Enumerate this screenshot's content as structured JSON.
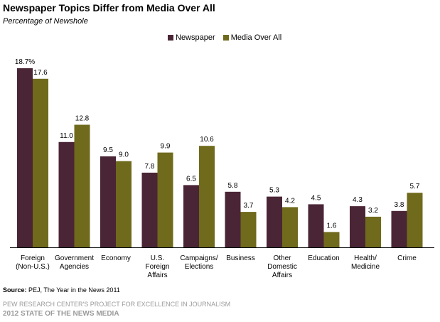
{
  "header": {
    "title": "Newspaper Topics Differ from Media Over All",
    "subtitle": "Percentage of Newshole"
  },
  "source": {
    "label": "Source:",
    "text": "PEJ, The Year in the News 2011"
  },
  "footer": {
    "org": "PEW RESEARCH CENTER'S PROJECT FOR EXCELLENCE IN JOURNALISM",
    "report": "2012 STATE OF THE NEWS MEDIA"
  },
  "colors": {
    "newspaper": "#4a2535",
    "media": "#6f6a1c"
  },
  "chart_data": {
    "type": "bar",
    "title": "Newspaper Topics Differ from Media Over All",
    "subtitle": "Percentage of Newshole",
    "legend_position": "top-center",
    "grid": false,
    "ylim": [
      0,
      18.7
    ],
    "categories": [
      [
        "Foreign",
        "(Non-U.S.)"
      ],
      [
        "Government",
        "Agencies"
      ],
      [
        "Economy"
      ],
      [
        "U.S.",
        "Foreign",
        "Affairs"
      ],
      [
        "Campaigns/",
        "Elections"
      ],
      [
        "Business"
      ],
      [
        "Other",
        "Domestic",
        "Affairs"
      ],
      [
        "Education"
      ],
      [
        "Health/",
        "Medicine"
      ],
      [
        "Crime"
      ]
    ],
    "series": [
      {
        "name": "Newspaper",
        "color": "#4a2535",
        "values": [
          18.7,
          11.0,
          9.5,
          7.8,
          6.5,
          5.8,
          5.3,
          4.5,
          4.3,
          3.8
        ],
        "labels": [
          "18.7%",
          "11.0",
          "9.5",
          "7.8",
          "6.5",
          "5.8",
          "5.3",
          "4.5",
          "4.3",
          "3.8"
        ]
      },
      {
        "name": "Media Over All",
        "color": "#6f6a1c",
        "values": [
          17.6,
          12.8,
          9.0,
          9.9,
          10.6,
          3.7,
          4.2,
          1.6,
          3.2,
          5.7
        ],
        "labels": [
          "17.6",
          "12.8",
          "9.0",
          "9.9",
          "10.6",
          "3.7",
          "4.2",
          "1.6",
          "3.2",
          "5.7"
        ]
      }
    ]
  }
}
